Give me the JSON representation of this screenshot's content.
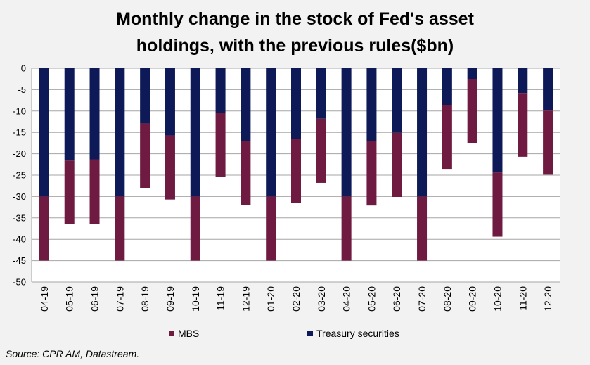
{
  "chart_data": {
    "type": "bar",
    "stacked": true,
    "title_line1": "Monthly change in the stock of Fed's asset",
    "title_line2": "holdings, with the previous rules($bn)",
    "xlabel": "",
    "ylabel": "",
    "ylim": [
      -50,
      0
    ],
    "yticks": [
      0,
      -5,
      -10,
      -15,
      -20,
      -25,
      -30,
      -35,
      -40,
      -45,
      -50
    ],
    "grid": true,
    "legend_position": "bottom",
    "categories": [
      "04-19",
      "05-19",
      "06-19",
      "07-19",
      "08-19",
      "09-19",
      "10-19",
      "11-19",
      "12-19",
      "01-20",
      "02-20",
      "03-20",
      "04-20",
      "05-20",
      "06-20",
      "07-20",
      "08-20",
      "09-20",
      "10-20",
      "11-20",
      "12-20"
    ],
    "series": [
      {
        "name": "Treasury securities",
        "color": "#0d1a57",
        "values": [
          -30,
          -21.6,
          -21.3,
          -30,
          -12.9,
          -15.7,
          -30,
          -10.5,
          -17,
          -30,
          -16.5,
          -11.8,
          -30,
          -17.1,
          -15.1,
          -30,
          -8.6,
          -2.6,
          -24.4,
          -5.8,
          -9.9
        ]
      },
      {
        "name": "MBS",
        "color": "#6e1a41",
        "values": [
          -15,
          -14.9,
          -15.1,
          -15,
          -15.1,
          -15.0,
          -15,
          -14.9,
          -15.0,
          -15,
          -15.0,
          -15.0,
          -15,
          -15.0,
          -15.0,
          -15,
          -15.1,
          -15.0,
          -15.0,
          -14.9,
          -15.0
        ]
      }
    ],
    "legend": [
      {
        "label": "MBS",
        "color": "#6e1a41"
      },
      {
        "label": "Treasury securities",
        "color": "#0d1a57"
      }
    ]
  },
  "source": "Source: CPR AM, Datastream."
}
